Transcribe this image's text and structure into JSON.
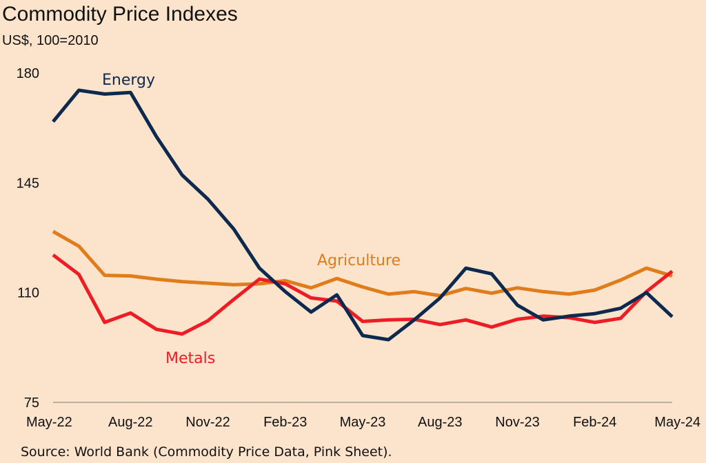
{
  "chart_data": {
    "type": "line",
    "title": "Commodity Price Indexes",
    "subtitle": "US$, 100=2010",
    "source": "Source: World Bank (Commodity Price Data, Pink Sheet).",
    "ylim": [
      75,
      180
    ],
    "yticks": [
      {
        "value": 75,
        "label": "75"
      },
      {
        "value": 110,
        "label": "110"
      },
      {
        "value": 145,
        "label": "145"
      },
      {
        "value": 180,
        "label": "180"
      }
    ],
    "x": [
      "May-22",
      "Jun-22",
      "Jul-22",
      "Aug-22",
      "Sep-22",
      "Oct-22",
      "Nov-22",
      "Dec-22",
      "Jan-23",
      "Feb-23",
      "Mar-23",
      "Apr-23",
      "May-23",
      "Jun-23",
      "Jul-23",
      "Aug-23",
      "Sep-23",
      "Oct-23",
      "Nov-23",
      "Dec-23",
      "Jan-24",
      "Feb-24",
      "Mar-24",
      "Apr-24",
      "May-24"
    ],
    "xticks": [
      {
        "index": 0,
        "label": "May-22"
      },
      {
        "index": 3,
        "label": "Aug-22"
      },
      {
        "index": 6,
        "label": "Nov-22"
      },
      {
        "index": 9,
        "label": "Feb-23"
      },
      {
        "index": 12,
        "label": "May-23"
      },
      {
        "index": 15,
        "label": "Aug-23"
      },
      {
        "index": 18,
        "label": "Nov-23"
      },
      {
        "index": 21,
        "label": "Feb-24"
      },
      {
        "index": 24,
        "label": "May-24"
      }
    ],
    "grid": false,
    "series": [
      {
        "name": "Energy",
        "label": "Energy",
        "color": "#0d2a4e",
        "values": [
          164.5,
          174.5,
          173.3,
          173.8,
          159.8,
          147.5,
          139.8,
          130.3,
          117.8,
          110.3,
          103.8,
          109.3,
          96.3,
          95.0,
          101.3,
          108.3,
          117.8,
          116.0,
          106.0,
          101.3,
          102.5,
          103.3,
          105.0,
          110.0,
          102.3
        ]
      },
      {
        "name": "Agriculture",
        "label": "Agriculture",
        "color": "#e07c1a",
        "values": [
          129.5,
          124.8,
          115.5,
          115.3,
          114.3,
          113.5,
          113.0,
          112.5,
          112.8,
          113.8,
          111.5,
          114.5,
          111.8,
          109.5,
          110.3,
          109.0,
          111.3,
          109.8,
          111.5,
          110.3,
          109.5,
          110.8,
          114.0,
          117.8,
          115.3
        ]
      },
      {
        "name": "Metals",
        "label": "Metals",
        "color": "#ee1c25",
        "values": [
          122.0,
          115.8,
          100.5,
          103.5,
          98.3,
          96.8,
          101.0,
          107.8,
          114.3,
          112.8,
          108.3,
          107.3,
          100.8,
          101.3,
          101.5,
          99.8,
          101.3,
          99.0,
          101.5,
          102.5,
          102.0,
          100.5,
          101.8,
          110.3,
          116.8
        ]
      }
    ]
  }
}
